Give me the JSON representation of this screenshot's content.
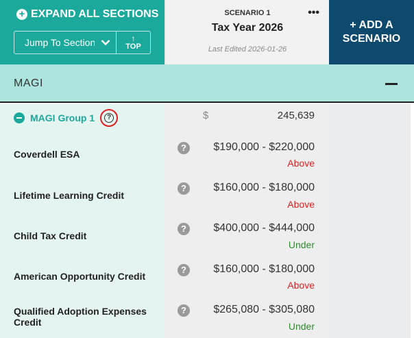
{
  "header": {
    "expand_all_label": "EXPAND ALL SECTIONS",
    "jump_placeholder": "Jump To Section",
    "top_label": "TOP",
    "scenario": {
      "label": "SCENARIO 1",
      "title": "Tax Year 2026",
      "last_edited": "Last Edited 2026-01-26"
    },
    "add_scenario_line1": "+ ADD A",
    "add_scenario_line2": "SCENARIO"
  },
  "section": {
    "title": "MAGI"
  },
  "group": {
    "name": "MAGI Group 1",
    "currency": "$",
    "value": "245,639"
  },
  "rows": [
    {
      "label": "Coverdell ESA",
      "range": "$190,000 - $220,000",
      "status": "Above",
      "status_color": "#e02020"
    },
    {
      "label": "Lifetime Learning Credit",
      "range": "$160,000 - $180,000",
      "status": "Above",
      "status_color": "#e02020"
    },
    {
      "label": "Child Tax Credit",
      "range": "$400,000 - $444,000",
      "status": "Under",
      "status_color": "#2e8b2e"
    },
    {
      "label": "American Opportunity Credit",
      "range": "$160,000 - $180,000",
      "status": "Above",
      "status_color": "#e02020"
    },
    {
      "label": "Qualified Adoption Expenses Credit",
      "range": "$265,080 - $305,080",
      "status": "Under",
      "status_color": "#2e8b2e"
    }
  ],
  "colors": {
    "teal": "#1aa99a",
    "navy": "#0e4a6e",
    "section_bar": "#ade4de",
    "above": "#e02020",
    "under": "#2e8b2e"
  }
}
